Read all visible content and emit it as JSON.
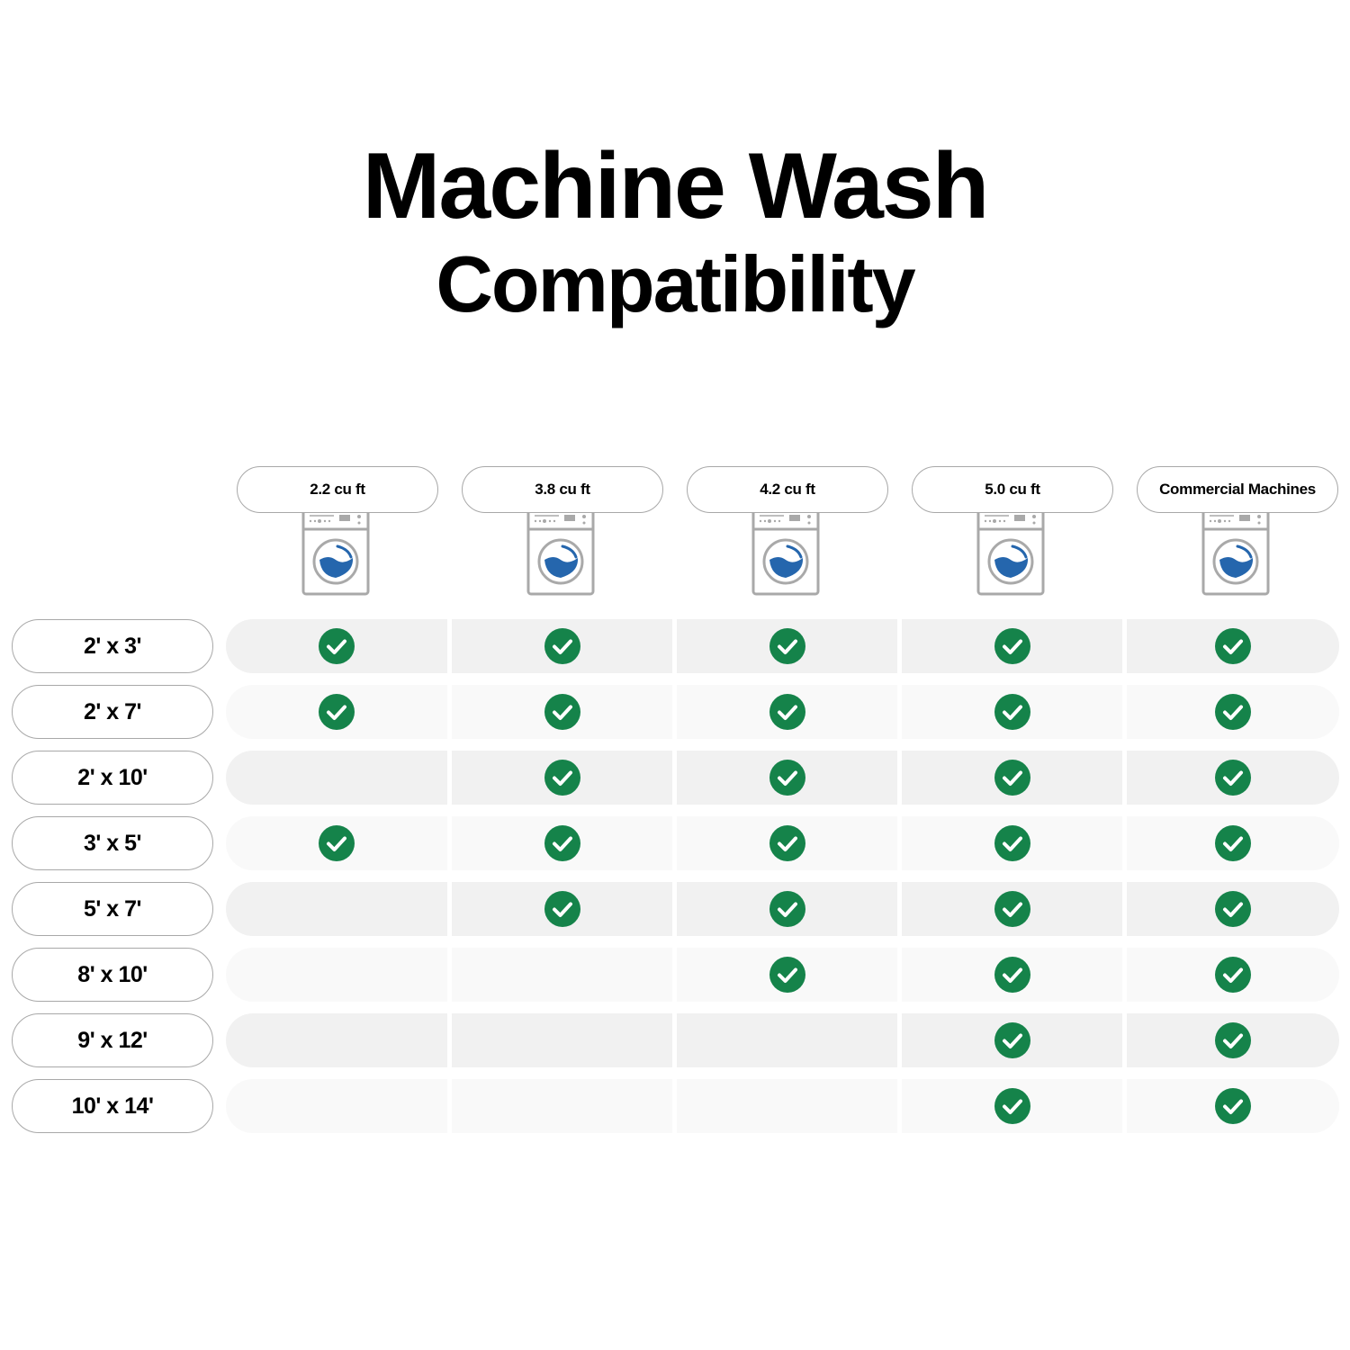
{
  "title": {
    "line1": "Machine Wash",
    "line2": "Compatibility"
  },
  "colors": {
    "check": "#15834a",
    "row_dark": "#f1f1f1",
    "row_light": "#f9f9f9",
    "water": "#2566ad",
    "machine_outline": "#a9a9a9"
  },
  "columns": [
    {
      "label": "2.2 cu ft",
      "icon": "washing-machine-icon"
    },
    {
      "label": "3.8 cu ft",
      "icon": "washing-machine-icon"
    },
    {
      "label": "4.2 cu ft",
      "icon": "washing-machine-icon"
    },
    {
      "label": "5.0 cu ft",
      "icon": "washing-machine-icon"
    },
    {
      "label": "Commercial Machines",
      "icon": "washing-machine-icon"
    }
  ],
  "rows": [
    {
      "label": "2' x 3'",
      "compatible": [
        true,
        true,
        true,
        true,
        true
      ]
    },
    {
      "label": "2' x 7'",
      "compatible": [
        true,
        true,
        true,
        true,
        true
      ]
    },
    {
      "label": "2' x 10'",
      "compatible": [
        false,
        true,
        true,
        true,
        true
      ]
    },
    {
      "label": "3' x 5'",
      "compatible": [
        true,
        true,
        true,
        true,
        true
      ]
    },
    {
      "label": "5' x 7'",
      "compatible": [
        false,
        true,
        true,
        true,
        true
      ]
    },
    {
      "label": "8' x 10'",
      "compatible": [
        false,
        false,
        true,
        true,
        true
      ]
    },
    {
      "label": "9' x 12'",
      "compatible": [
        false,
        false,
        false,
        true,
        true
      ]
    },
    {
      "label": "10' x 14'",
      "compatible": [
        false,
        false,
        false,
        true,
        true
      ]
    }
  ]
}
